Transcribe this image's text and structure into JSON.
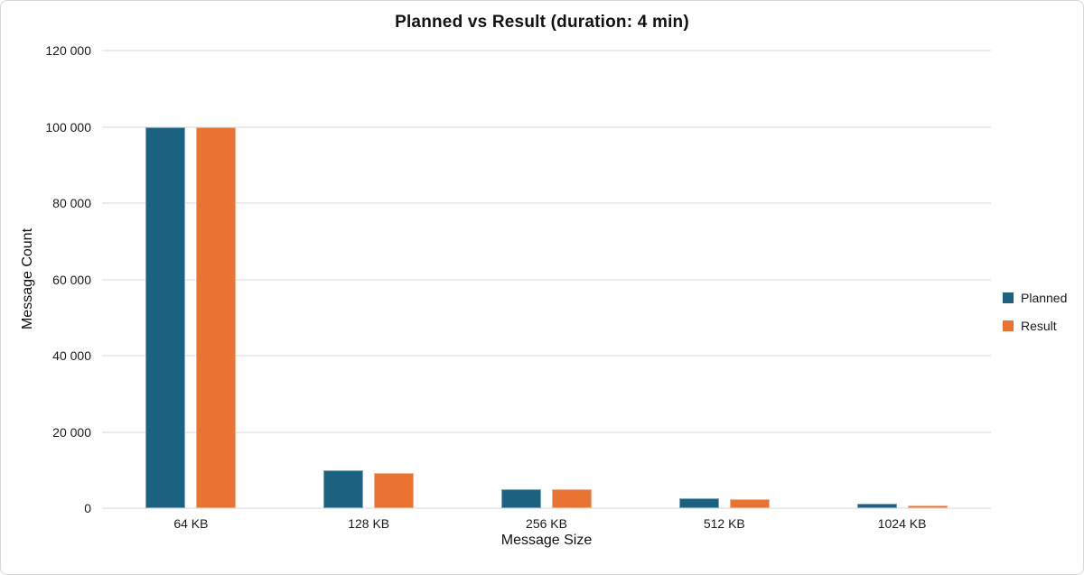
{
  "chart_data": {
    "type": "bar",
    "title": "Planned vs Result (duration: 4 min)",
    "xlabel": "Message Size",
    "ylabel": "Message Count",
    "categories": [
      "64 KB",
      "128 KB",
      "256 KB",
      "512 KB",
      "1024 KB"
    ],
    "series": [
      {
        "name": "Planned",
        "color": "#1b6180",
        "values": [
          100000,
          10000,
          5000,
          2500,
          1250
        ]
      },
      {
        "name": "Result",
        "color": "#e97432",
        "values": [
          100000,
          9300,
          4900,
          2400,
          720
        ]
      }
    ],
    "ylim": [
      0,
      120000
    ],
    "yticks": [
      0,
      20000,
      40000,
      60000,
      80000,
      100000,
      120000
    ],
    "ytick_labels": [
      "0",
      "20 000",
      "40 000",
      "60 000",
      "80 000",
      "100 000",
      "120 000"
    ],
    "grid": true,
    "legend_position": "right",
    "background_color": "#ffffff",
    "gridline_color": "#ebebeb"
  }
}
